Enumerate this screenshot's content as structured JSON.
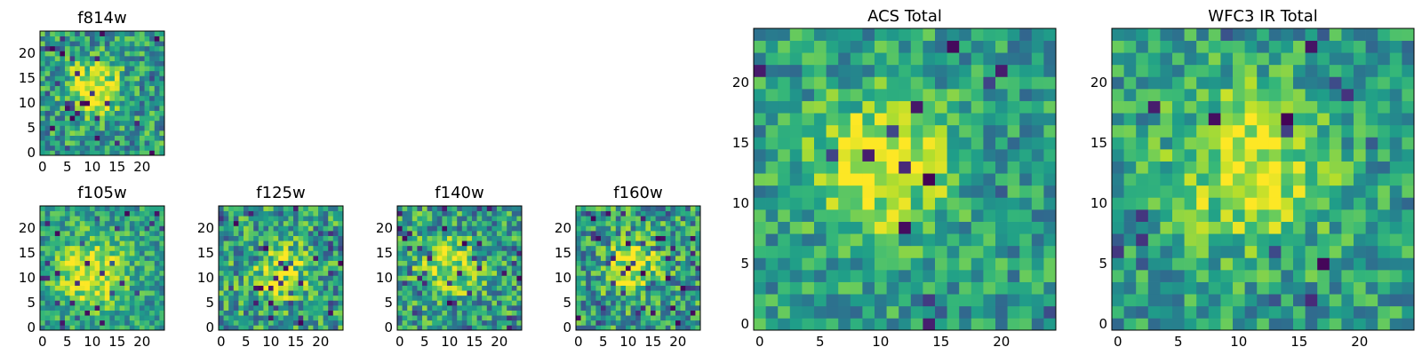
{
  "chart_data": [
    {
      "type": "heatmap",
      "id": "f814w",
      "title": "f814w",
      "grid": [
        25,
        25
      ],
      "xticks": [
        "0",
        "5",
        "10",
        "15",
        "20"
      ],
      "yticks": [
        "0",
        "5",
        "10",
        "15",
        "20"
      ],
      "xlim": [
        0,
        25
      ],
      "ylim": [
        0,
        25
      ],
      "colormap": "viridis",
      "peak": [
        10,
        13
      ],
      "peak_spread": 3.5,
      "peak_strength": 0.55,
      "noise": 0.55,
      "dark_fraction": 0.05,
      "seed": 11
    },
    {
      "type": "heatmap",
      "id": "f105w",
      "title": "f105w",
      "grid": [
        25,
        25
      ],
      "xticks": [
        "0",
        "5",
        "10",
        "15",
        "20"
      ],
      "yticks": [
        "0",
        "5",
        "10",
        "15",
        "20"
      ],
      "xlim": [
        0,
        25
      ],
      "ylim": [
        0,
        25
      ],
      "colormap": "viridis",
      "peak": [
        10,
        11
      ],
      "peak_spread": 5,
      "peak_strength": 0.45,
      "noise": 0.45,
      "dark_fraction": 0.04,
      "seed": 23
    },
    {
      "type": "heatmap",
      "id": "f125w",
      "title": "f125w",
      "grid": [
        25,
        25
      ],
      "xticks": [
        "0",
        "5",
        "10",
        "15",
        "20"
      ],
      "yticks": [
        "0",
        "5",
        "10",
        "15",
        "20"
      ],
      "xlim": [
        0,
        25
      ],
      "ylim": [
        0,
        25
      ],
      "colormap": "viridis",
      "peak": [
        12,
        11
      ],
      "peak_spread": 4,
      "peak_strength": 0.35,
      "noise": 0.6,
      "dark_fraction": 0.07,
      "seed": 37
    },
    {
      "type": "heatmap",
      "id": "f140w",
      "title": "f140w",
      "grid": [
        25,
        25
      ],
      "xticks": [
        "0",
        "5",
        "10",
        "15",
        "20"
      ],
      "yticks": [
        "0",
        "5",
        "10",
        "15",
        "20"
      ],
      "xlim": [
        0,
        25
      ],
      "ylim": [
        0,
        25
      ],
      "colormap": "viridis",
      "peak": [
        10,
        12
      ],
      "peak_spread": 4,
      "peak_strength": 0.35,
      "noise": 0.6,
      "dark_fraction": 0.08,
      "seed": 41
    },
    {
      "type": "heatmap",
      "id": "f160w",
      "title": "f160w",
      "grid": [
        25,
        25
      ],
      "xticks": [
        "0",
        "5",
        "10",
        "15",
        "20"
      ],
      "yticks": [
        "0",
        "5",
        "10",
        "15",
        "20"
      ],
      "xlim": [
        0,
        25
      ],
      "ylim": [
        0,
        25
      ],
      "colormap": "viridis",
      "peak": [
        11,
        12
      ],
      "peak_spread": 3.5,
      "peak_strength": 0.45,
      "noise": 0.6,
      "dark_fraction": 0.08,
      "seed": 53
    },
    {
      "type": "heatmap",
      "id": "acs-total",
      "title": "ACS Total",
      "grid": [
        25,
        25
      ],
      "xticks": [
        "0",
        "5",
        "10",
        "15",
        "20"
      ],
      "yticks": [
        "0",
        "5",
        "10",
        "15",
        "20"
      ],
      "xlim": [
        0,
        25
      ],
      "ylim": [
        0,
        25
      ],
      "colormap": "viridis",
      "peak": [
        10,
        13
      ],
      "peak_spread": 4,
      "peak_strength": 0.45,
      "noise": 0.45,
      "dark_fraction": 0.03,
      "seed": 67
    },
    {
      "type": "heatmap",
      "id": "wfc3-ir-total",
      "title": "WFC3 IR Total",
      "grid": [
        25,
        25
      ],
      "xticks": [
        "0",
        "5",
        "10",
        "15",
        "20"
      ],
      "yticks": [
        "0",
        "5",
        "10",
        "15",
        "20"
      ],
      "xlim": [
        0,
        25
      ],
      "ylim": [
        0,
        25
      ],
      "colormap": "viridis",
      "peak": [
        11,
        13
      ],
      "peak_spread": 4.5,
      "peak_strength": 0.4,
      "noise": 0.45,
      "dark_fraction": 0.03,
      "seed": 79
    }
  ]
}
